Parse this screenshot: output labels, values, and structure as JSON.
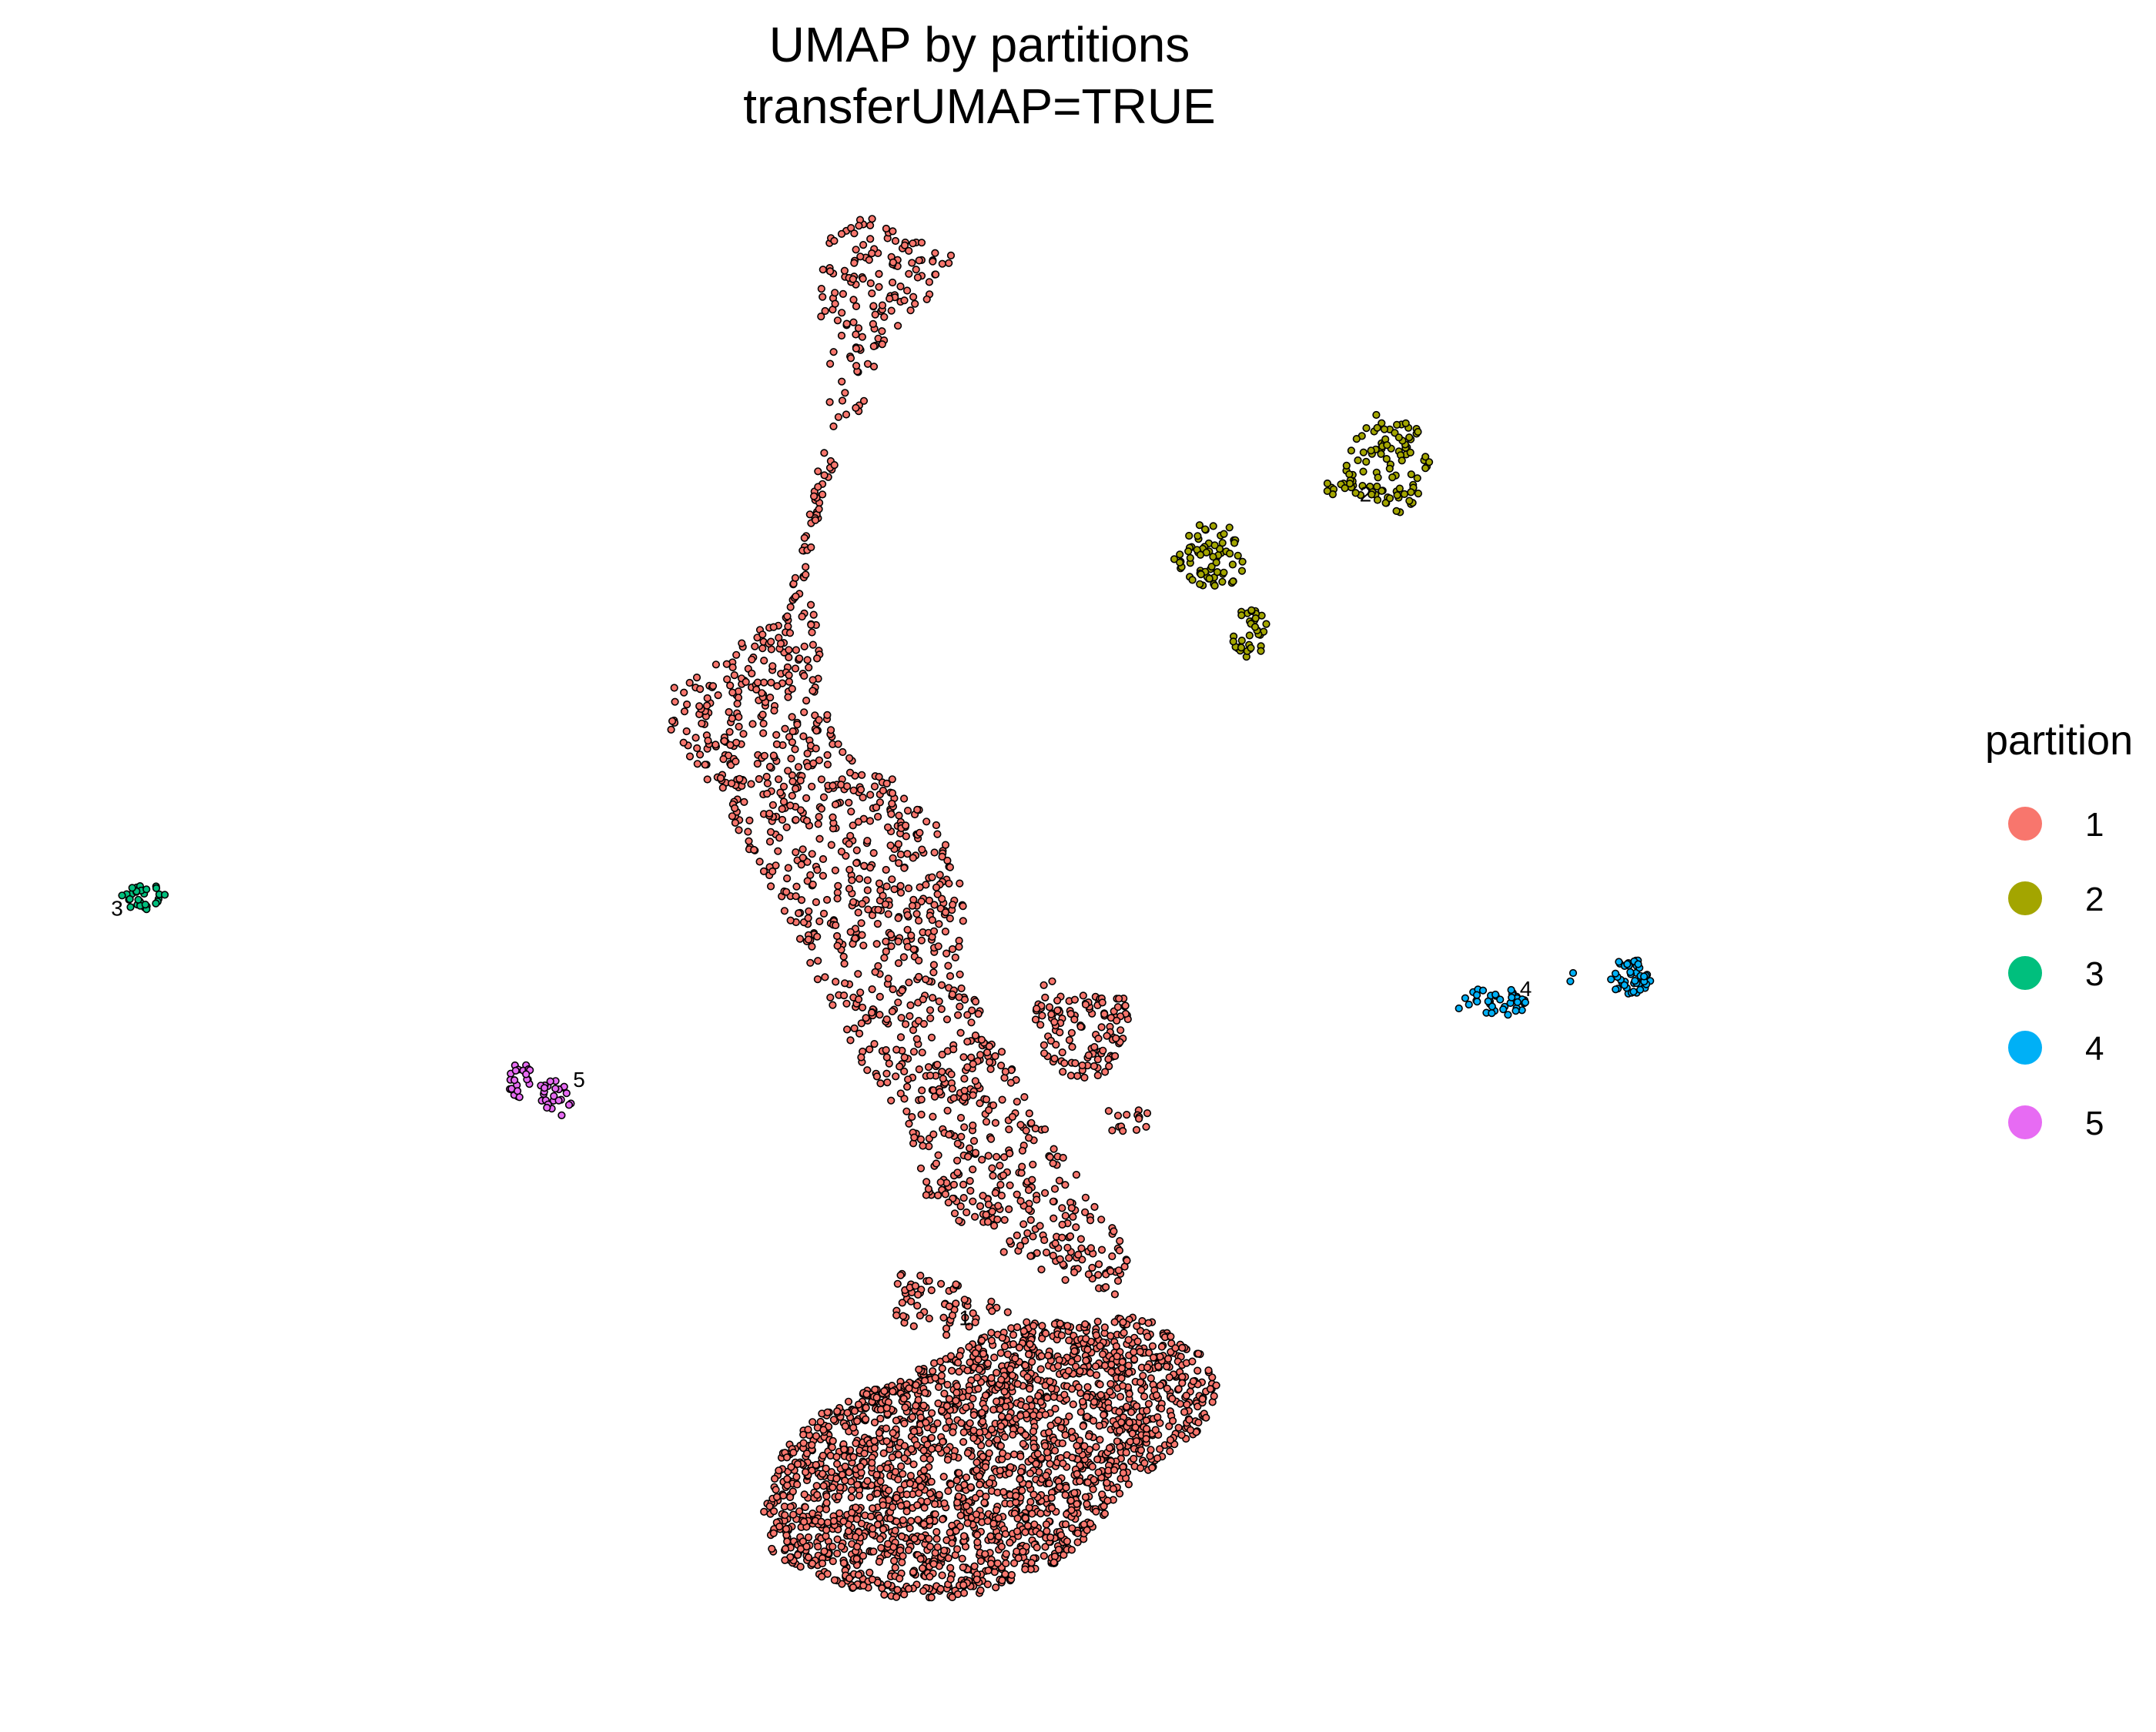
{
  "chart_data": {
    "type": "scatter",
    "title": "UMAP by partitions",
    "subtitle": "transferUMAP=TRUE",
    "xlabel": "",
    "ylabel": "",
    "grid": false,
    "axes_visible": false,
    "xlim": [
      0,
      100
    ],
    "ylim": [
      0,
      100
    ],
    "legend": {
      "title": "partition",
      "placement": "right",
      "entries": [
        {
          "label": "1",
          "color": "#F8766D"
        },
        {
          "label": "2",
          "color": "#A3A500"
        },
        {
          "label": "3",
          "color": "#00BF7D"
        },
        {
          "label": "4",
          "color": "#00B0F6"
        },
        {
          "label": "5",
          "color": "#E76BF3"
        }
      ]
    },
    "marker": {
      "stroke": "#000000",
      "shape": "circle"
    },
    "cluster_labels": [
      {
        "text": "1",
        "x": 49.3,
        "y": 24.3
      },
      {
        "text": "2",
        "x": 70.8,
        "y": 78.6
      },
      {
        "text": "3",
        "x": 3.8,
        "y": 51.3
      },
      {
        "text": "4",
        "x": 79.4,
        "y": 46.0
      },
      {
        "text": "5",
        "x": 28.6,
        "y": 40.0
      }
    ],
    "series": [
      {
        "name": "1",
        "color": "#F8766D",
        "regions": [
          {
            "kind": "polygon",
            "count": 150,
            "points": [
              [
                41.8,
                98.0
              ],
              [
                44.0,
                97.5
              ],
              [
                48.6,
                94.8
              ],
              [
                48.3,
                93.0
              ],
              [
                44.9,
                89.0
              ],
              [
                43.4,
                83.0
              ],
              [
                42.0,
                82.0
              ],
              [
                41.8,
                86.0
              ],
              [
                41.4,
                90.0
              ],
              [
                41.6,
                94.0
              ]
            ]
          },
          {
            "kind": "polygon",
            "count": 45,
            "points": [
              [
                41.6,
                82.0
              ],
              [
                42.4,
                81.0
              ],
              [
                41.3,
                77.0
              ],
              [
                40.6,
                72.0
              ],
              [
                39.9,
                70.0
              ],
              [
                39.7,
                71.5
              ],
              [
                40.5,
                75.0
              ],
              [
                41.0,
                78.5
              ]
            ]
          },
          {
            "kind": "polygon",
            "count": 1100,
            "points": [
              [
                39.0,
                71.0
              ],
              [
                41.5,
                72.0
              ],
              [
                41.5,
                66.0
              ],
              [
                43.0,
                62.0
              ],
              [
                45.0,
                61.0
              ],
              [
                48.0,
                57.0
              ],
              [
                49.5,
                52.0
              ],
              [
                49.0,
                48.0
              ],
              [
                50.5,
                44.0
              ],
              [
                53.0,
                39.0
              ],
              [
                55.0,
                35.0
              ],
              [
                57.0,
                31.0
              ],
              [
                59.0,
                29.0
              ],
              [
                57.5,
                26.0
              ],
              [
                53.0,
                28.0
              ],
              [
                50.0,
                30.0
              ],
              [
                47.0,
                33.0
              ],
              [
                46.0,
                38.0
              ],
              [
                43.5,
                42.0
              ],
              [
                41.0,
                48.0
              ],
              [
                39.0,
                53.0
              ],
              [
                36.0,
                59.0
              ],
              [
                33.5,
                63.0
              ],
              [
                33.2,
                66.0
              ],
              [
                36.0,
                68.0
              ]
            ]
          },
          {
            "kind": "polygon",
            "count": 120,
            "points": [
              [
                53.5,
                48.0
              ],
              [
                55.0,
                46.0
              ],
              [
                58.0,
                46.5
              ],
              [
                58.2,
                44.0
              ],
              [
                57.0,
                41.0
              ],
              [
                55.5,
                40.0
              ],
              [
                53.5,
                42.0
              ],
              [
                53.0,
                45.0
              ]
            ]
          },
          {
            "kind": "polygon",
            "count": 14,
            "points": [
              [
                57.0,
                38.5
              ],
              [
                59.2,
                38.6
              ],
              [
                59.3,
                37.0
              ],
              [
                57.2,
                36.9
              ]
            ]
          },
          {
            "kind": "polygon",
            "count": 2200,
            "points": [
              [
                48.0,
                22.0
              ],
              [
                51.5,
                24.5
              ],
              [
                56.0,
                24.5
              ],
              [
                59.0,
                25.0
              ],
              [
                62.0,
                22.5
              ],
              [
                63.0,
                20.0
              ],
              [
                62.0,
                17.5
              ],
              [
                58.0,
                13.5
              ],
              [
                55.0,
                9.0
              ],
              [
                50.0,
                6.5
              ],
              [
                47.0,
                6.0
              ],
              [
                43.0,
                7.0
              ],
              [
                39.0,
                9.0
              ],
              [
                38.5,
                12.0
              ],
              [
                39.5,
                16.0
              ],
              [
                42.0,
                19.0
              ],
              [
                46.0,
                21.0
              ]
            ]
          },
          {
            "kind": "polygon",
            "count": 60,
            "points": [
              [
                45.5,
                28.0
              ],
              [
                49.0,
                27.0
              ],
              [
                52.0,
                25.0
              ],
              [
                48.5,
                23.5
              ],
              [
                45.5,
                24.5
              ]
            ]
          }
        ]
      },
      {
        "name": "2",
        "color": "#A3A500",
        "regions": [
          {
            "kind": "ellipse",
            "count": 95,
            "cx": 72.0,
            "cy": 81.0,
            "rx": 2.2,
            "ry": 3.5
          },
          {
            "kind": "ellipse",
            "count": 70,
            "cx": 62.5,
            "cy": 75.0,
            "rx": 1.9,
            "ry": 2.2
          },
          {
            "kind": "ellipse",
            "count": 35,
            "cx": 64.5,
            "cy": 70.0,
            "rx": 1.0,
            "ry": 1.6
          },
          {
            "kind": "ellipse",
            "count": 12,
            "cx": 69.5,
            "cy": 79.5,
            "rx": 1.0,
            "ry": 0.7
          }
        ]
      },
      {
        "name": "3",
        "color": "#00BF7D",
        "regions": [
          {
            "kind": "ellipse",
            "count": 30,
            "cx": 5.2,
            "cy": 52.6,
            "rx": 1.1,
            "ry": 0.8
          }
        ]
      },
      {
        "name": "4",
        "color": "#00B0F6",
        "regions": [
          {
            "kind": "ellipse",
            "count": 38,
            "cx": 77.5,
            "cy": 45.6,
            "rx": 2.0,
            "ry": 1.0
          },
          {
            "kind": "ellipse",
            "count": 45,
            "cx": 85.0,
            "cy": 47.3,
            "rx": 1.1,
            "ry": 1.2
          },
          {
            "kind": "ellipse",
            "count": 2,
            "cx": 82.0,
            "cy": 47.2,
            "rx": 0.3,
            "ry": 0.2
          }
        ]
      },
      {
        "name": "5",
        "color": "#E76BF3",
        "regions": [
          {
            "kind": "ellipse",
            "count": 25,
            "cx": 27.4,
            "cy": 39.5,
            "rx": 1.0,
            "ry": 1.3
          },
          {
            "kind": "ellipse",
            "count": 22,
            "cx": 25.3,
            "cy": 40.7,
            "rx": 0.7,
            "ry": 1.4
          }
        ]
      }
    ]
  }
}
